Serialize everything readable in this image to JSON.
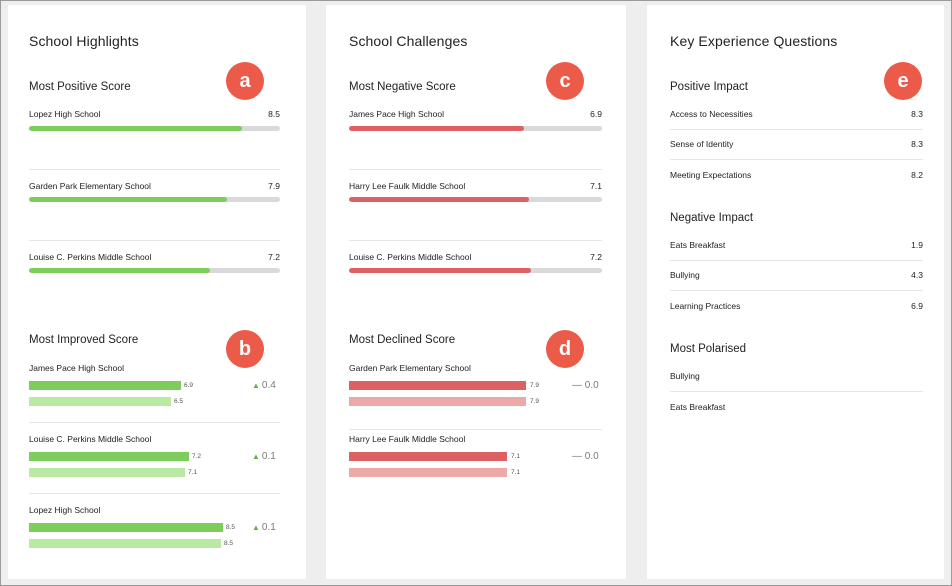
{
  "highlights": {
    "title": "School Highlights",
    "positive": {
      "title": "Most Positive Score",
      "badge": "a",
      "items": [
        {
          "name": "Lopez High School",
          "value": "8.5",
          "fraction": 0.85
        },
        {
          "name": "Garden Park Elementary School",
          "value": "7.9",
          "fraction": 0.79
        },
        {
          "name": "Louise C. Perkins Middle School",
          "value": "7.2",
          "fraction": 0.72
        }
      ]
    },
    "improved": {
      "title": "Most Improved Score",
      "badge": "b",
      "items": [
        {
          "name": "James Pace High School",
          "current": "6.9",
          "previous": "6.5",
          "change": "0.4"
        },
        {
          "name": "Louise C. Perkins Middle School",
          "current": "7.2",
          "previous": "7.1",
          "change": "0.1"
        },
        {
          "name": "Lopez High School",
          "current": "8.5",
          "previous": "8.5",
          "change": "0.1"
        }
      ]
    }
  },
  "challenges": {
    "title": "School Challenges",
    "negative": {
      "title": "Most Negative Score",
      "badge": "c",
      "items": [
        {
          "name": "James Pace High School",
          "value": "6.9",
          "fraction": 0.69
        },
        {
          "name": "Harry Lee Faulk Middle School",
          "value": "7.1",
          "fraction": 0.71
        },
        {
          "name": "Louise C. Perkins Middle School",
          "value": "7.2",
          "fraction": 0.72
        }
      ]
    },
    "declined": {
      "title": "Most Declined Score",
      "badge": "d",
      "items": [
        {
          "name": "Garden Park Elementary School",
          "current": "7.9",
          "previous": "7.9",
          "change": "— 0.0"
        },
        {
          "name": "Harry Lee Faulk Middle School",
          "current": "7.1",
          "previous": "7.1",
          "change": "— 0.0"
        }
      ]
    }
  },
  "key_questions": {
    "title": "Key Experience Questions",
    "badge": "e",
    "positive": {
      "title": "Positive Impact",
      "items": [
        {
          "name": "Access to Necessities",
          "value": "8.3"
        },
        {
          "name": "Sense of Identity",
          "value": "8.3"
        },
        {
          "name": "Meeting Expectations",
          "value": "8.2"
        }
      ]
    },
    "negative": {
      "title": "Negative Impact",
      "items": [
        {
          "name": "Eats Breakfast",
          "value": "1.9"
        },
        {
          "name": "Bullying",
          "value": "4.3"
        },
        {
          "name": "Learning Practices",
          "value": "6.9"
        }
      ]
    },
    "polarised": {
      "title": "Most Polarised",
      "items": [
        {
          "name": "Bullying"
        },
        {
          "name": "Eats Breakfast"
        }
      ]
    }
  },
  "colors": {
    "positive": "#7ccd5c",
    "negative": "#dd6163",
    "badge": "#ec5b4a"
  }
}
